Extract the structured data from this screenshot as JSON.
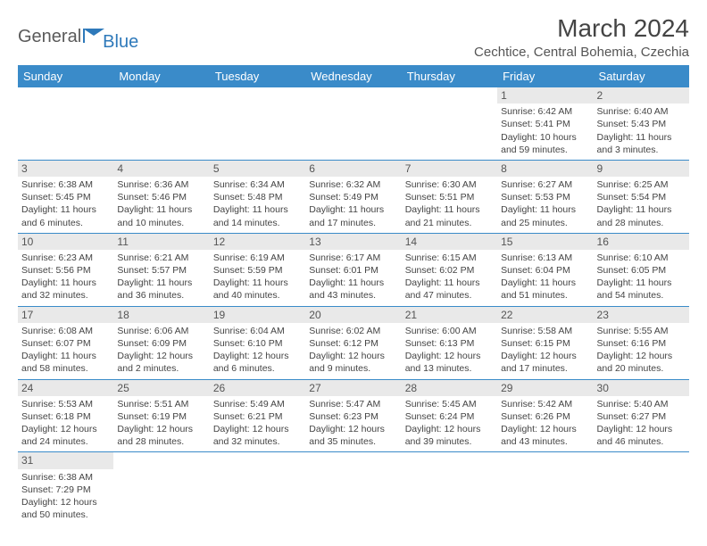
{
  "logo": {
    "brand_a": "General",
    "brand_b": "Blue",
    "flag_color": "#2e79ba"
  },
  "header": {
    "title": "March 2024",
    "location": "Cechtice, Central Bohemia, Czechia"
  },
  "colors": {
    "header_bg": "#3a8bc9",
    "daynum_bg": "#e9e9e9",
    "text": "#444444"
  },
  "weekdays": [
    "Sunday",
    "Monday",
    "Tuesday",
    "Wednesday",
    "Thursday",
    "Friday",
    "Saturday"
  ],
  "weeks": [
    [
      {
        "day": "",
        "sunrise": "",
        "sunset": "",
        "daylight1": "",
        "daylight2": ""
      },
      {
        "day": "",
        "sunrise": "",
        "sunset": "",
        "daylight1": "",
        "daylight2": ""
      },
      {
        "day": "",
        "sunrise": "",
        "sunset": "",
        "daylight1": "",
        "daylight2": ""
      },
      {
        "day": "",
        "sunrise": "",
        "sunset": "",
        "daylight1": "",
        "daylight2": ""
      },
      {
        "day": "",
        "sunrise": "",
        "sunset": "",
        "daylight1": "",
        "daylight2": ""
      },
      {
        "day": "1",
        "sunrise": "Sunrise: 6:42 AM",
        "sunset": "Sunset: 5:41 PM",
        "daylight1": "Daylight: 10 hours",
        "daylight2": "and 59 minutes."
      },
      {
        "day": "2",
        "sunrise": "Sunrise: 6:40 AM",
        "sunset": "Sunset: 5:43 PM",
        "daylight1": "Daylight: 11 hours",
        "daylight2": "and 3 minutes."
      }
    ],
    [
      {
        "day": "3",
        "sunrise": "Sunrise: 6:38 AM",
        "sunset": "Sunset: 5:45 PM",
        "daylight1": "Daylight: 11 hours",
        "daylight2": "and 6 minutes."
      },
      {
        "day": "4",
        "sunrise": "Sunrise: 6:36 AM",
        "sunset": "Sunset: 5:46 PM",
        "daylight1": "Daylight: 11 hours",
        "daylight2": "and 10 minutes."
      },
      {
        "day": "5",
        "sunrise": "Sunrise: 6:34 AM",
        "sunset": "Sunset: 5:48 PM",
        "daylight1": "Daylight: 11 hours",
        "daylight2": "and 14 minutes."
      },
      {
        "day": "6",
        "sunrise": "Sunrise: 6:32 AM",
        "sunset": "Sunset: 5:49 PM",
        "daylight1": "Daylight: 11 hours",
        "daylight2": "and 17 minutes."
      },
      {
        "day": "7",
        "sunrise": "Sunrise: 6:30 AM",
        "sunset": "Sunset: 5:51 PM",
        "daylight1": "Daylight: 11 hours",
        "daylight2": "and 21 minutes."
      },
      {
        "day": "8",
        "sunrise": "Sunrise: 6:27 AM",
        "sunset": "Sunset: 5:53 PM",
        "daylight1": "Daylight: 11 hours",
        "daylight2": "and 25 minutes."
      },
      {
        "day": "9",
        "sunrise": "Sunrise: 6:25 AM",
        "sunset": "Sunset: 5:54 PM",
        "daylight1": "Daylight: 11 hours",
        "daylight2": "and 28 minutes."
      }
    ],
    [
      {
        "day": "10",
        "sunrise": "Sunrise: 6:23 AM",
        "sunset": "Sunset: 5:56 PM",
        "daylight1": "Daylight: 11 hours",
        "daylight2": "and 32 minutes."
      },
      {
        "day": "11",
        "sunrise": "Sunrise: 6:21 AM",
        "sunset": "Sunset: 5:57 PM",
        "daylight1": "Daylight: 11 hours",
        "daylight2": "and 36 minutes."
      },
      {
        "day": "12",
        "sunrise": "Sunrise: 6:19 AM",
        "sunset": "Sunset: 5:59 PM",
        "daylight1": "Daylight: 11 hours",
        "daylight2": "and 40 minutes."
      },
      {
        "day": "13",
        "sunrise": "Sunrise: 6:17 AM",
        "sunset": "Sunset: 6:01 PM",
        "daylight1": "Daylight: 11 hours",
        "daylight2": "and 43 minutes."
      },
      {
        "day": "14",
        "sunrise": "Sunrise: 6:15 AM",
        "sunset": "Sunset: 6:02 PM",
        "daylight1": "Daylight: 11 hours",
        "daylight2": "and 47 minutes."
      },
      {
        "day": "15",
        "sunrise": "Sunrise: 6:13 AM",
        "sunset": "Sunset: 6:04 PM",
        "daylight1": "Daylight: 11 hours",
        "daylight2": "and 51 minutes."
      },
      {
        "day": "16",
        "sunrise": "Sunrise: 6:10 AM",
        "sunset": "Sunset: 6:05 PM",
        "daylight1": "Daylight: 11 hours",
        "daylight2": "and 54 minutes."
      }
    ],
    [
      {
        "day": "17",
        "sunrise": "Sunrise: 6:08 AM",
        "sunset": "Sunset: 6:07 PM",
        "daylight1": "Daylight: 11 hours",
        "daylight2": "and 58 minutes."
      },
      {
        "day": "18",
        "sunrise": "Sunrise: 6:06 AM",
        "sunset": "Sunset: 6:09 PM",
        "daylight1": "Daylight: 12 hours",
        "daylight2": "and 2 minutes."
      },
      {
        "day": "19",
        "sunrise": "Sunrise: 6:04 AM",
        "sunset": "Sunset: 6:10 PM",
        "daylight1": "Daylight: 12 hours",
        "daylight2": "and 6 minutes."
      },
      {
        "day": "20",
        "sunrise": "Sunrise: 6:02 AM",
        "sunset": "Sunset: 6:12 PM",
        "daylight1": "Daylight: 12 hours",
        "daylight2": "and 9 minutes."
      },
      {
        "day": "21",
        "sunrise": "Sunrise: 6:00 AM",
        "sunset": "Sunset: 6:13 PM",
        "daylight1": "Daylight: 12 hours",
        "daylight2": "and 13 minutes."
      },
      {
        "day": "22",
        "sunrise": "Sunrise: 5:58 AM",
        "sunset": "Sunset: 6:15 PM",
        "daylight1": "Daylight: 12 hours",
        "daylight2": "and 17 minutes."
      },
      {
        "day": "23",
        "sunrise": "Sunrise: 5:55 AM",
        "sunset": "Sunset: 6:16 PM",
        "daylight1": "Daylight: 12 hours",
        "daylight2": "and 20 minutes."
      }
    ],
    [
      {
        "day": "24",
        "sunrise": "Sunrise: 5:53 AM",
        "sunset": "Sunset: 6:18 PM",
        "daylight1": "Daylight: 12 hours",
        "daylight2": "and 24 minutes."
      },
      {
        "day": "25",
        "sunrise": "Sunrise: 5:51 AM",
        "sunset": "Sunset: 6:19 PM",
        "daylight1": "Daylight: 12 hours",
        "daylight2": "and 28 minutes."
      },
      {
        "day": "26",
        "sunrise": "Sunrise: 5:49 AM",
        "sunset": "Sunset: 6:21 PM",
        "daylight1": "Daylight: 12 hours",
        "daylight2": "and 32 minutes."
      },
      {
        "day": "27",
        "sunrise": "Sunrise: 5:47 AM",
        "sunset": "Sunset: 6:23 PM",
        "daylight1": "Daylight: 12 hours",
        "daylight2": "and 35 minutes."
      },
      {
        "day": "28",
        "sunrise": "Sunrise: 5:45 AM",
        "sunset": "Sunset: 6:24 PM",
        "daylight1": "Daylight: 12 hours",
        "daylight2": "and 39 minutes."
      },
      {
        "day": "29",
        "sunrise": "Sunrise: 5:42 AM",
        "sunset": "Sunset: 6:26 PM",
        "daylight1": "Daylight: 12 hours",
        "daylight2": "and 43 minutes."
      },
      {
        "day": "30",
        "sunrise": "Sunrise: 5:40 AM",
        "sunset": "Sunset: 6:27 PM",
        "daylight1": "Daylight: 12 hours",
        "daylight2": "and 46 minutes."
      }
    ],
    [
      {
        "day": "31",
        "sunrise": "Sunrise: 6:38 AM",
        "sunset": "Sunset: 7:29 PM",
        "daylight1": "Daylight: 12 hours",
        "daylight2": "and 50 minutes."
      },
      {
        "day": "",
        "sunrise": "",
        "sunset": "",
        "daylight1": "",
        "daylight2": ""
      },
      {
        "day": "",
        "sunrise": "",
        "sunset": "",
        "daylight1": "",
        "daylight2": ""
      },
      {
        "day": "",
        "sunrise": "",
        "sunset": "",
        "daylight1": "",
        "daylight2": ""
      },
      {
        "day": "",
        "sunrise": "",
        "sunset": "",
        "daylight1": "",
        "daylight2": ""
      },
      {
        "day": "",
        "sunrise": "",
        "sunset": "",
        "daylight1": "",
        "daylight2": ""
      },
      {
        "day": "",
        "sunrise": "",
        "sunset": "",
        "daylight1": "",
        "daylight2": ""
      }
    ]
  ]
}
